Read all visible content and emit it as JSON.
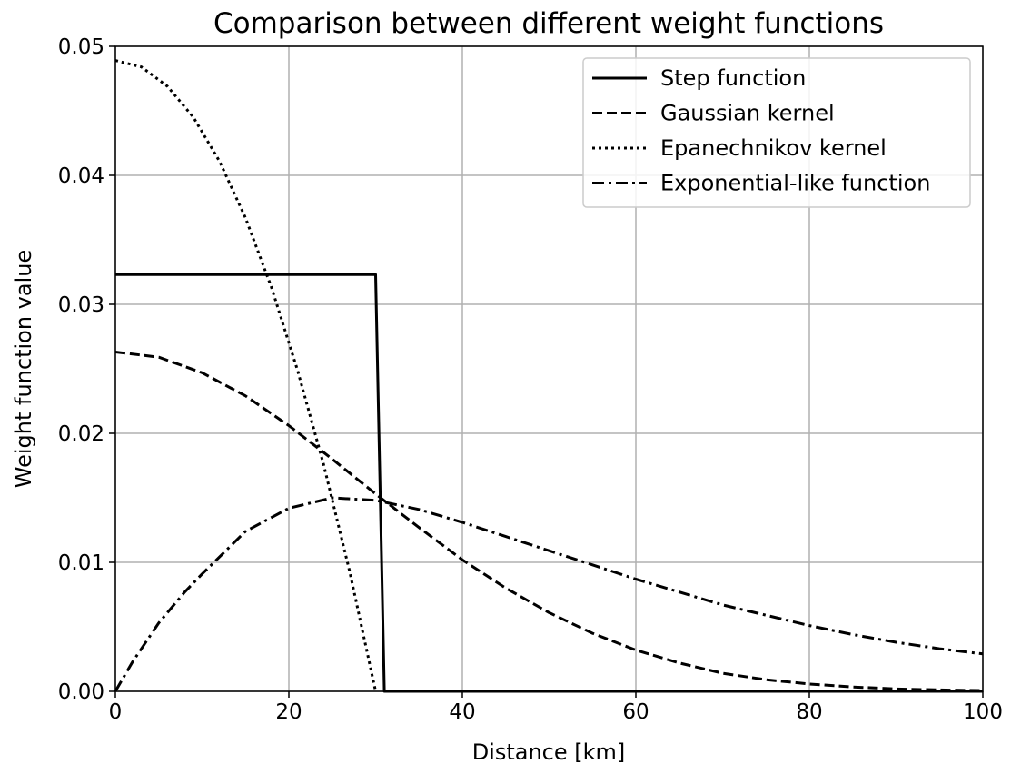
{
  "chart_data": {
    "type": "line",
    "title": "Comparison between different weight functions",
    "xlabel": "Distance [km]",
    "ylabel": "Weight function value",
    "xlim": [
      0,
      100
    ],
    "ylim": [
      0,
      0.05
    ],
    "xticks": [
      0,
      20,
      40,
      60,
      80,
      100
    ],
    "xtick_labels": [
      "0",
      "20",
      "40",
      "60",
      "80",
      "100"
    ],
    "yticks": [
      0,
      0.01,
      0.02,
      0.03,
      0.04,
      0.05
    ],
    "ytick_labels": [
      "0.00",
      "0.01",
      "0.02",
      "0.03",
      "0.04",
      "0.05"
    ],
    "grid": true,
    "legend_position": "top-right",
    "series": [
      {
        "name": "Step function",
        "style": "solid",
        "color": "#000000",
        "x": [
          0,
          30,
          31,
          100
        ],
        "y": [
          0.0323,
          0.0323,
          0,
          0
        ]
      },
      {
        "name": "Gaussian kernel",
        "style": "dashed",
        "color": "#000000",
        "x": [
          0,
          5,
          10,
          15,
          20,
          25,
          30,
          35,
          40,
          45,
          50,
          55,
          60,
          65,
          70,
          75,
          80,
          85,
          90,
          95,
          100
        ],
        "y": [
          0.0263,
          0.0259,
          0.0247,
          0.0229,
          0.0206,
          0.018,
          0.0153,
          0.0127,
          0.0102,
          0.008,
          0.0061,
          0.0045,
          0.0032,
          0.0022,
          0.0014,
          0.0009,
          0.00057,
          0.00034,
          0.00019,
          0.00011,
          6e-05
        ]
      },
      {
        "name": "Epanechnikov kernel",
        "style": "dotted",
        "color": "#000000",
        "x": [
          0,
          3,
          6,
          9,
          12,
          15,
          18,
          21,
          24,
          27,
          30
        ],
        "y": [
          0.0489,
          0.0484,
          0.0469,
          0.0445,
          0.0411,
          0.0367,
          0.0313,
          0.0249,
          0.0176,
          0.0093,
          0
        ]
      },
      {
        "name": "Exponential-like function",
        "style": "dashdot",
        "color": "#000000",
        "x": [
          0,
          2,
          5,
          8,
          10,
          15,
          20,
          25,
          30,
          35,
          40,
          45,
          50,
          55,
          60,
          65,
          70,
          75,
          80,
          85,
          90,
          95,
          100
        ],
        "y": [
          0,
          0.0023,
          0.0053,
          0.0077,
          0.0091,
          0.0124,
          0.0142,
          0.015,
          0.0148,
          0.0141,
          0.0131,
          0.012,
          0.0109,
          0.0098,
          0.0087,
          0.0077,
          0.0067,
          0.0059,
          0.0051,
          0.0044,
          0.0038,
          0.0033,
          0.0029
        ]
      }
    ]
  }
}
